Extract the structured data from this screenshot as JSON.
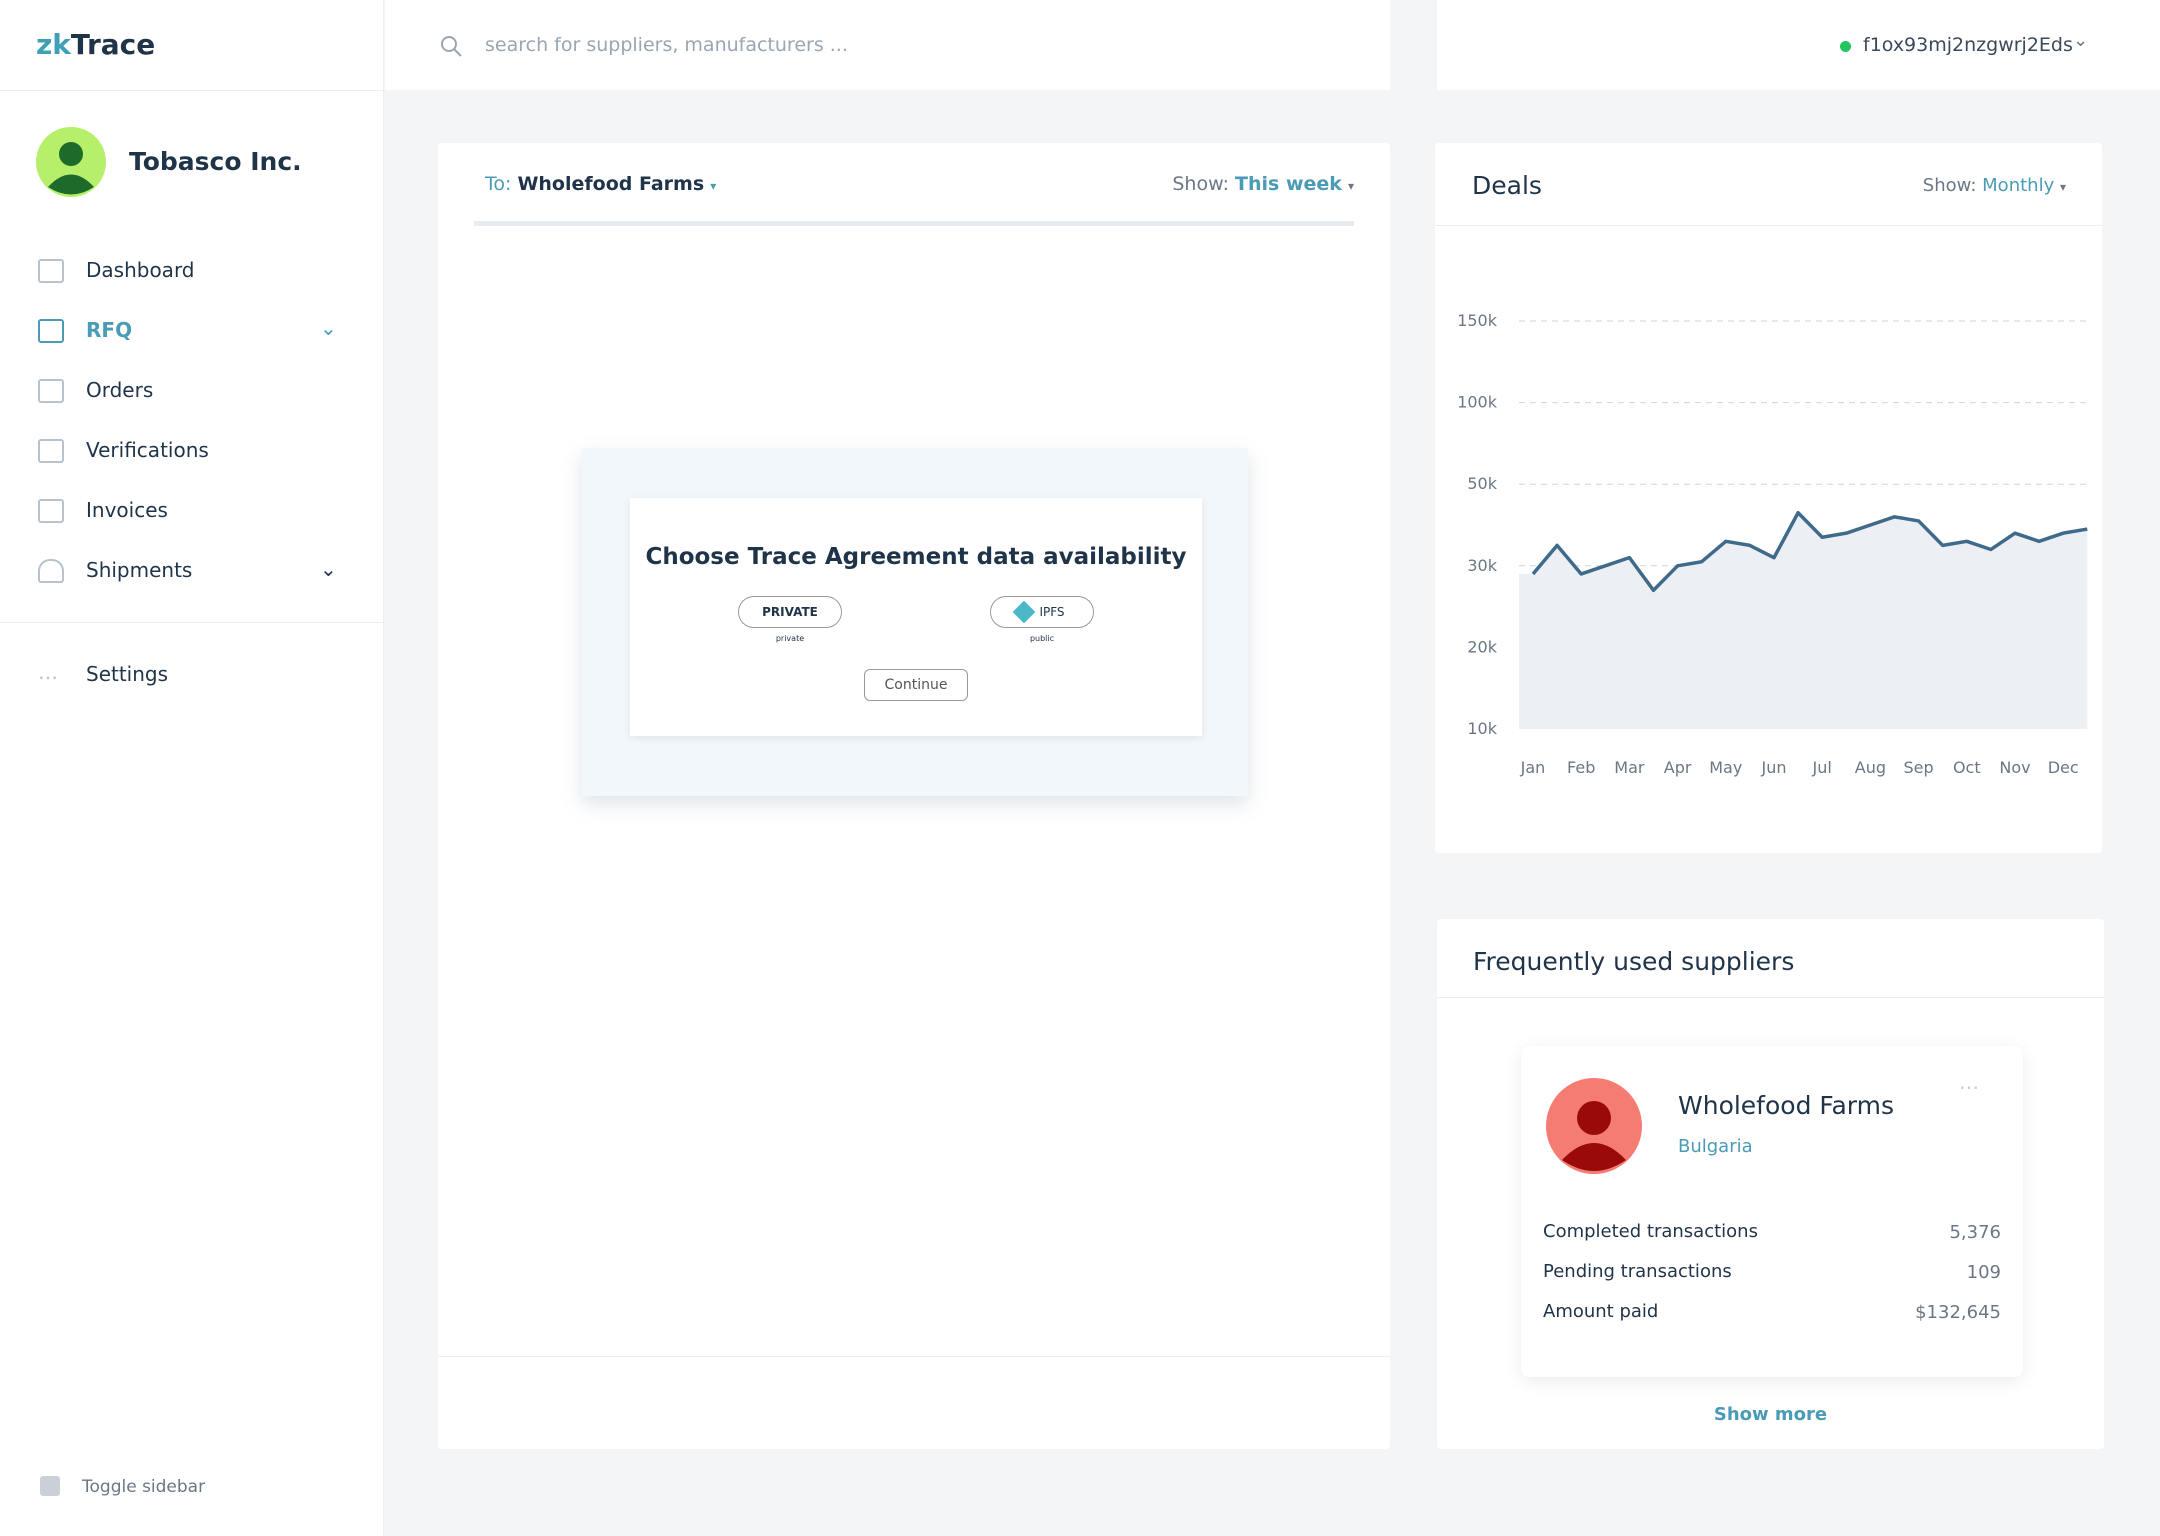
{
  "app": {
    "logo": {
      "prefix": "zk",
      "rest": "Trace"
    },
    "search_placeholder": "search for suppliers, manufacturers ...",
    "wallet": "f1ox93mj2nzgwrj2Eds"
  },
  "sidebar": {
    "company": "Tobasco Inc.",
    "nav": [
      "Dashboard",
      "RFQ",
      "Orders",
      "Verifications",
      "Invoices",
      "Shipments"
    ],
    "settings": "Settings",
    "toggle": "Toggle sidebar"
  },
  "main_card": {
    "to_label": "To:",
    "to_value": "Wholefood Farms",
    "show_label": "Show:",
    "show_value": "This week",
    "modal": {
      "title": "Choose Trace Agreement data availability",
      "options": [
        {
          "label": "PRIVATE",
          "caption": "private"
        },
        {
          "label": "IPFS",
          "caption": "public"
        }
      ],
      "button": "Continue"
    }
  },
  "deals": {
    "title": "Deals",
    "show_label": "Show:",
    "show_value": "Monthly"
  },
  "chart_data": {
    "type": "line",
    "color": "#3f6a8a",
    "area_color": "#eceff3",
    "categories": [
      "Jan",
      null,
      "Feb",
      null,
      "Mar",
      null,
      "Apr",
      null,
      "May",
      null,
      "Jun",
      null,
      "Jul",
      null,
      "Aug",
      null,
      "Sep",
      null,
      "Oct",
      null,
      "Nov",
      null,
      "Dec",
      null
    ],
    "values": [
      29000,
      35000,
      29000,
      30000,
      32000,
      27000,
      30000,
      31000,
      36000,
      35000,
      32000,
      43000,
      37000,
      38000,
      40000,
      42000,
      41000,
      35000,
      36000,
      34000,
      38000,
      36000,
      38000,
      39000
    ],
    "ylim": [
      10000,
      150000
    ],
    "yticks": [
      {
        "value": 10000,
        "label": "10k"
      },
      {
        "value": 20000,
        "label": "20k"
      },
      {
        "value": 30000,
        "label": "30k"
      },
      {
        "value": 50000,
        "label": "50k"
      },
      {
        "value": 100000,
        "label": "100k"
      },
      {
        "value": 150000,
        "label": "150k"
      }
    ],
    "grid": true
  },
  "suppliers": {
    "title": "Frequently used suppliers",
    "card": {
      "name": "Wholefood Farms",
      "country": "Bulgaria",
      "stats": [
        {
          "label": "Completed transactions",
          "value": "5,376"
        },
        {
          "label": "Pending transactions",
          "value": "109"
        },
        {
          "label": "Amount paid",
          "value": "$132,645"
        }
      ]
    },
    "show_more": "Show more"
  }
}
